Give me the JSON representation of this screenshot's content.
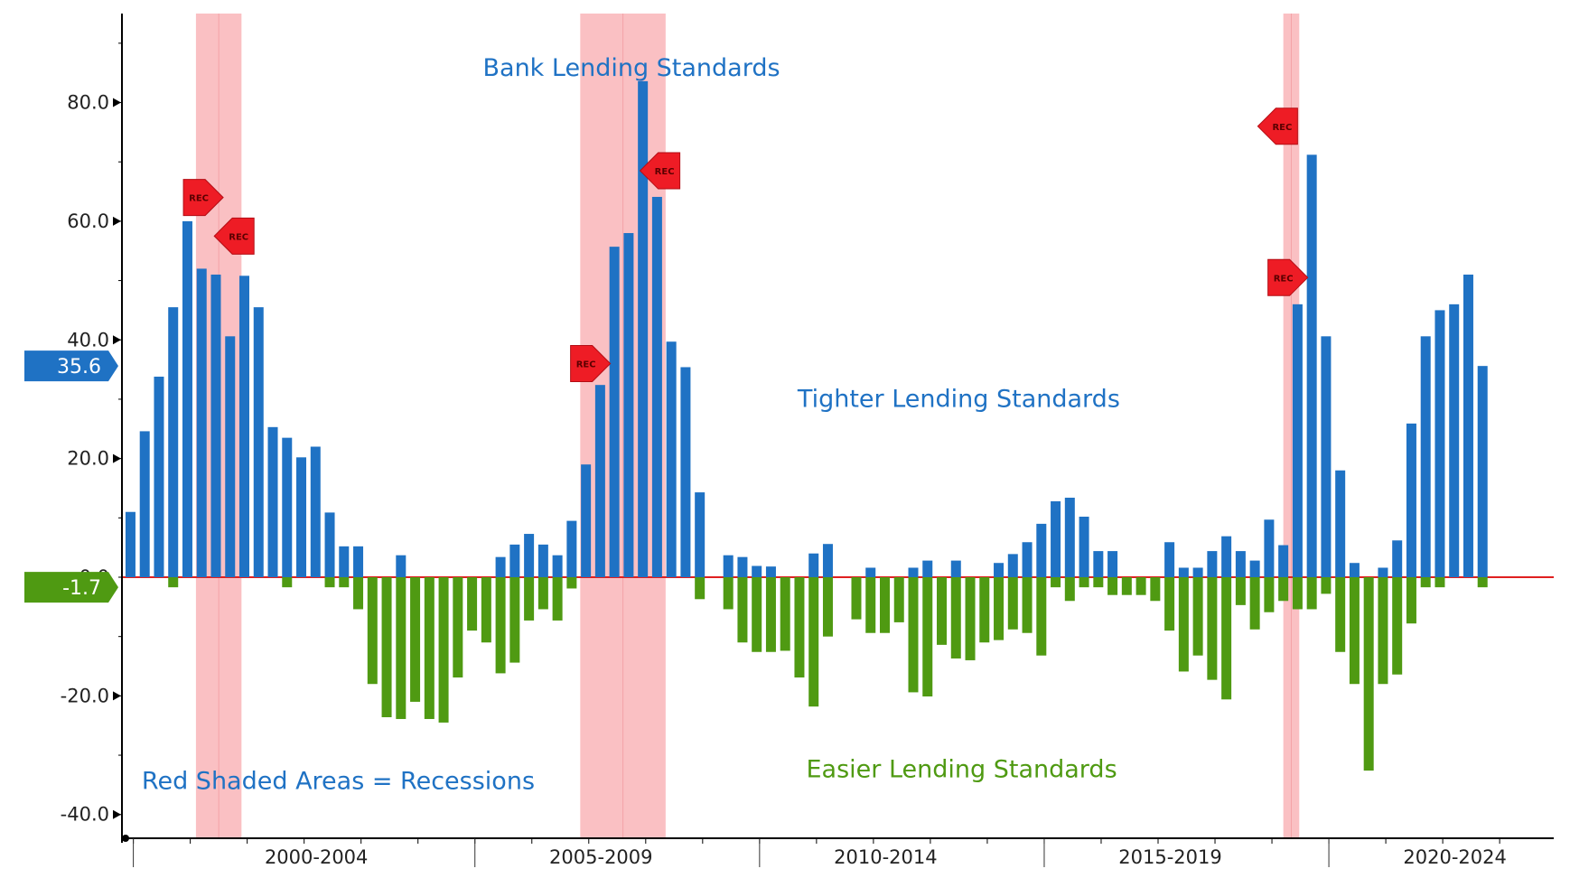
{
  "chart_data": {
    "type": "bar",
    "title": "Bank Lending Standards",
    "subtitle": "",
    "xlabel": "",
    "ylabel": "",
    "ylim": [
      -44,
      95
    ],
    "y_ticks": [
      {
        "value": 80,
        "label": "80.0"
      },
      {
        "value": 60,
        "label": "60.0"
      },
      {
        "value": 40,
        "label": "40.0"
      },
      {
        "value": 20,
        "label": "20.0"
      },
      {
        "value": 0,
        "label": "0.0"
      },
      {
        "value": -20,
        "label": "-20.0"
      },
      {
        "value": -40,
        "label": "-40.0"
      }
    ],
    "x_period_labels": [
      {
        "label": "2000-2004",
        "start": 2000,
        "end": 2005
      },
      {
        "label": "2005-2009",
        "start": 2005,
        "end": 2010
      },
      {
        "label": "2010-2014",
        "start": 2010,
        "end": 2015
      },
      {
        "label": "2015-2019",
        "start": 2015,
        "end": 2020
      },
      {
        "label": "2020-2024",
        "start": 2020,
        "end": 2025
      }
    ],
    "x_range": [
      1998.9,
      2023.5
    ],
    "series": [
      {
        "name": "Tighter Lending Standards",
        "color": "#1f72c4",
        "bars": [
          {
            "t": 1998.95,
            "v": 11
          },
          {
            "t": 1999.2,
            "v": 24.6
          },
          {
            "t": 1999.45,
            "v": 33.8
          },
          {
            "t": 1999.7,
            "v": 45.5
          },
          {
            "t": 1999.95,
            "v": 60
          },
          {
            "t": 2000.2,
            "v": 52
          },
          {
            "t": 2000.45,
            "v": 51
          },
          {
            "t": 2000.7,
            "v": 40.6
          },
          {
            "t": 2000.95,
            "v": 50.8
          },
          {
            "t": 2001.2,
            "v": 45.5
          },
          {
            "t": 2001.45,
            "v": 25.3
          },
          {
            "t": 2001.7,
            "v": 23.5
          },
          {
            "t": 2001.95,
            "v": 20.2
          },
          {
            "t": 2002.2,
            "v": 22
          },
          {
            "t": 2002.45,
            "v": 10.9
          },
          {
            "t": 2002.7,
            "v": 5.2
          },
          {
            "t": 2002.95,
            "v": 5.2
          },
          {
            "t": 2003.7,
            "v": 3.7
          },
          {
            "t": 2005.45,
            "v": 3.4
          },
          {
            "t": 2005.7,
            "v": 5.5
          },
          {
            "t": 2005.95,
            "v": 7.3
          },
          {
            "t": 2006.2,
            "v": 5.5
          },
          {
            "t": 2006.45,
            "v": 3.7
          },
          {
            "t": 2006.7,
            "v": 9.5
          },
          {
            "t": 2006.95,
            "v": 19
          },
          {
            "t": 2007.2,
            "v": 32.4
          },
          {
            "t": 2007.45,
            "v": 55.7
          },
          {
            "t": 2007.7,
            "v": 58
          },
          {
            "t": 2007.95,
            "v": 83.6
          },
          {
            "t": 2008.2,
            "v": 64.1
          },
          {
            "t": 2008.45,
            "v": 39.7
          },
          {
            "t": 2008.7,
            "v": 35.4
          },
          {
            "t": 2008.95,
            "v": 14.3
          },
          {
            "t": 2009.45,
            "v": 3.7
          },
          {
            "t": 2009.7,
            "v": 3.4
          },
          {
            "t": 2009.95,
            "v": 1.9
          },
          {
            "t": 2010.2,
            "v": 1.8
          },
          {
            "t": 2010.95,
            "v": 4
          },
          {
            "t": 2011.2,
            "v": 5.6
          },
          {
            "t": 2011.95,
            "v": 1.6
          },
          {
            "t": 2012.7,
            "v": 1.6
          },
          {
            "t": 2012.95,
            "v": 2.8
          },
          {
            "t": 2013.45,
            "v": 2.8
          },
          {
            "t": 2014.2,
            "v": 2.4
          },
          {
            "t": 2014.45,
            "v": 3.9
          },
          {
            "t": 2014.7,
            "v": 5.9
          },
          {
            "t": 2014.95,
            "v": 9
          },
          {
            "t": 2015.2,
            "v": 12.8
          },
          {
            "t": 2015.45,
            "v": 13.4
          },
          {
            "t": 2015.7,
            "v": 10.2
          },
          {
            "t": 2015.95,
            "v": 4.4
          },
          {
            "t": 2016.2,
            "v": 4.4
          },
          {
            "t": 2017.2,
            "v": 5.9
          },
          {
            "t": 2017.45,
            "v": 1.6
          },
          {
            "t": 2017.7,
            "v": 1.6
          },
          {
            "t": 2017.95,
            "v": 4.4
          },
          {
            "t": 2018.2,
            "v": 6.9
          },
          {
            "t": 2018.45,
            "v": 4.4
          },
          {
            "t": 2018.7,
            "v": 2.8
          },
          {
            "t": 2018.95,
            "v": 9.7
          },
          {
            "t": 2019.2,
            "v": 5.4
          },
          {
            "t": 2019.45,
            "v": 46
          },
          {
            "t": 2019.7,
            "v": 71.2
          },
          {
            "t": 2019.95,
            "v": 40.6
          },
          {
            "t": 2020.2,
            "v": 18
          },
          {
            "t": 2020.45,
            "v": 2.4
          },
          {
            "t": 2020.95,
            "v": 1.6
          },
          {
            "t": 2021.2,
            "v": 6.2
          },
          {
            "t": 2021.45,
            "v": 25.9
          },
          {
            "t": 2021.7,
            "v": 40.6
          },
          {
            "t": 2021.95,
            "v": 45
          },
          {
            "t": 2022.2,
            "v": 46
          },
          {
            "t": 2022.45,
            "v": 51
          },
          {
            "t": 2022.7,
            "v": 35.6
          }
        ]
      },
      {
        "name": "Easier Lending Standards",
        "color": "#4f9a12",
        "bars": [
          {
            "t": 1999.7,
            "v": -1.7
          },
          {
            "t": 2001.7,
            "v": -1.7
          },
          {
            "t": 2002.45,
            "v": -1.7
          },
          {
            "t": 2002.7,
            "v": -1.7
          },
          {
            "t": 2002.95,
            "v": -5.4
          },
          {
            "t": 2003.2,
            "v": -18
          },
          {
            "t": 2003.45,
            "v": -23.6
          },
          {
            "t": 2003.7,
            "v": -23.9
          },
          {
            "t": 2003.95,
            "v": -21
          },
          {
            "t": 2004.2,
            "v": -23.9
          },
          {
            "t": 2004.45,
            "v": -24.5
          },
          {
            "t": 2004.7,
            "v": -16.9
          },
          {
            "t": 2004.95,
            "v": -9
          },
          {
            "t": 2005.2,
            "v": -11
          },
          {
            "t": 2005.45,
            "v": -16.2
          },
          {
            "t": 2005.7,
            "v": -14.4
          },
          {
            "t": 2005.95,
            "v": -7.3
          },
          {
            "t": 2006.2,
            "v": -5.4
          },
          {
            "t": 2006.45,
            "v": -7.3
          },
          {
            "t": 2006.7,
            "v": -1.9
          },
          {
            "t": 2008.95,
            "v": -3.7
          },
          {
            "t": 2009.45,
            "v": -5.4
          },
          {
            "t": 2009.7,
            "v": -11
          },
          {
            "t": 2009.95,
            "v": -12.6
          },
          {
            "t": 2010.2,
            "v": -12.6
          },
          {
            "t": 2010.45,
            "v": -12.4
          },
          {
            "t": 2010.7,
            "v": -16.9
          },
          {
            "t": 2010.95,
            "v": -21.8
          },
          {
            "t": 2011.2,
            "v": -10
          },
          {
            "t": 2011.7,
            "v": -7.1
          },
          {
            "t": 2011.95,
            "v": -9.4
          },
          {
            "t": 2012.2,
            "v": -9.4
          },
          {
            "t": 2012.45,
            "v": -7.6
          },
          {
            "t": 2012.7,
            "v": -19.4
          },
          {
            "t": 2012.95,
            "v": -20.1
          },
          {
            "t": 2013.2,
            "v": -11.4
          },
          {
            "t": 2013.45,
            "v": -13.7
          },
          {
            "t": 2013.7,
            "v": -14
          },
          {
            "t": 2013.95,
            "v": -11
          },
          {
            "t": 2014.2,
            "v": -10.6
          },
          {
            "t": 2014.45,
            "v": -8.8
          },
          {
            "t": 2014.7,
            "v": -9.4
          },
          {
            "t": 2014.95,
            "v": -13.2
          },
          {
            "t": 2015.2,
            "v": -1.7
          },
          {
            "t": 2015.45,
            "v": -4
          },
          {
            "t": 2015.7,
            "v": -1.7
          },
          {
            "t": 2015.95,
            "v": -1.7
          },
          {
            "t": 2016.2,
            "v": -3
          },
          {
            "t": 2016.45,
            "v": -3
          },
          {
            "t": 2016.7,
            "v": -3
          },
          {
            "t": 2016.95,
            "v": -4
          },
          {
            "t": 2017.2,
            "v": -9
          },
          {
            "t": 2017.45,
            "v": -15.9
          },
          {
            "t": 2017.7,
            "v": -13.2
          },
          {
            "t": 2017.95,
            "v": -17.3
          },
          {
            "t": 2018.2,
            "v": -20.6
          },
          {
            "t": 2018.45,
            "v": -4.7
          },
          {
            "t": 2018.7,
            "v": -8.8
          },
          {
            "t": 2018.95,
            "v": -5.9
          },
          {
            "t": 2019.2,
            "v": -4
          },
          {
            "t": 2019.45,
            "v": -5.4
          },
          {
            "t": 2019.7,
            "v": -5.4
          },
          {
            "t": 2019.95,
            "v": -2.8
          },
          {
            "t": 2020.2,
            "v": -12.6
          },
          {
            "t": 2020.45,
            "v": -18
          },
          {
            "t": 2020.7,
            "v": -32.6
          },
          {
            "t": 2020.95,
            "v": -18
          },
          {
            "t": 2021.2,
            "v": -16.4
          },
          {
            "t": 2021.45,
            "v": -7.8
          },
          {
            "t": 2021.7,
            "v": -1.7
          },
          {
            "t": 2021.95,
            "v": -1.7
          },
          {
            "t": 2022.7,
            "v": -1.7
          }
        ]
      }
    ],
    "recession_shading": [
      {
        "start": 2000.1,
        "end": 2000.9
      },
      {
        "start": 2006.85,
        "end": 2008.35
      },
      {
        "start": 2019.2,
        "end": 2019.48
      }
    ],
    "recession_bands_color": "#f9b5b8",
    "recession_markers": [
      {
        "label": "REC",
        "t": 2000.15,
        "v": 64,
        "dir": "right"
      },
      {
        "label": "REC",
        "t": 2000.85,
        "v": 57.5,
        "dir": "left"
      },
      {
        "label": "REC",
        "t": 2006.95,
        "v": 36,
        "dir": "right"
      },
      {
        "label": "REC",
        "t": 2008.33,
        "v": 68.5,
        "dir": "left"
      },
      {
        "label": "REC",
        "t": 2019.18,
        "v": 76,
        "dir": "left"
      },
      {
        "label": "REC",
        "t": 2019.2,
        "v": 50.5,
        "dir": "right"
      }
    ],
    "zero_line_color": "#e02020",
    "annotations": [
      {
        "text": "Bank Lending Standards",
        "color": "#1f72c4",
        "t": 2007.75,
        "v": 84.5
      },
      {
        "text": "Tighter Lending Standards",
        "color": "#1f72c4",
        "t": 2013.5,
        "v": 28.7
      },
      {
        "text": "Easier Lending Standards",
        "color": "#4f9a12",
        "t": 2013.55,
        "v": -33.7
      },
      {
        "text": "Red Shaded Areas = Recessions",
        "color": "#1f72c4",
        "t": 2002.6,
        "v": -35.7
      }
    ],
    "value_tags": [
      {
        "label": "35.6",
        "value": 35.6,
        "color": "#1f72c4"
      },
      {
        "label": "-1.7",
        "value": -1.7,
        "color": "#4f9a12"
      }
    ]
  }
}
